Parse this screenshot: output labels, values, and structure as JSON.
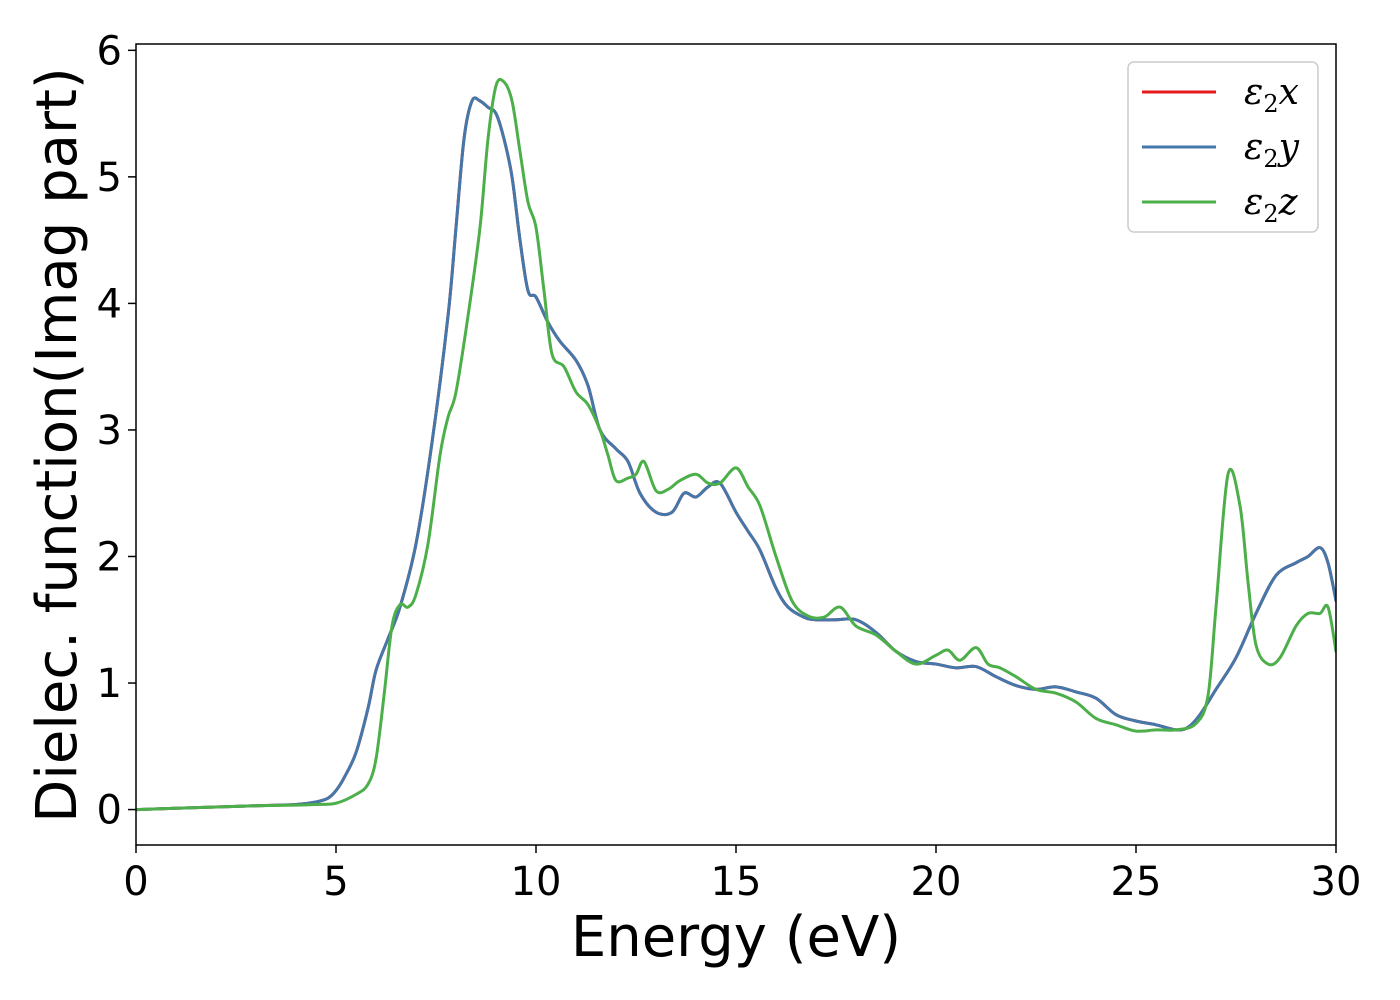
{
  "chart_data": {
    "type": "line",
    "title": "",
    "xlabel": "Energy (eV)",
    "ylabel": "Dielec. function(Imag part)",
    "xlim": [
      0,
      30
    ],
    "ylim": [
      -0.28,
      6.05
    ],
    "xticks": [
      0,
      5,
      10,
      15,
      20,
      25,
      30
    ],
    "yticks": [
      0,
      1,
      2,
      3,
      4,
      5,
      6
    ],
    "grid": false,
    "legend_position": "top-right",
    "series": [
      {
        "name": "ε2x",
        "legend": {
          "base": "ε",
          "sub": "2",
          "var": "x"
        },
        "color": "#e41a1c",
        "x": [
          0,
          1,
          2,
          3,
          4,
          4.5,
          4.8,
          5.0,
          5.2,
          5.5,
          5.8,
          6.0,
          6.3,
          6.6,
          7.0,
          7.4,
          7.8,
          8.0,
          8.2,
          8.4,
          8.6,
          8.8,
          9.0,
          9.2,
          9.4,
          9.6,
          9.8,
          10.0,
          10.3,
          10.6,
          11.0,
          11.3,
          11.6,
          12.0,
          12.3,
          12.6,
          13.0,
          13.4,
          13.7,
          14.0,
          14.3,
          14.6,
          15.0,
          15.3,
          15.6,
          16.0,
          16.3,
          16.7,
          17.0,
          17.5,
          18.0,
          18.5,
          19.0,
          19.5,
          20.0,
          20.5,
          21.0,
          21.5,
          22.0,
          22.5,
          23.0,
          23.5,
          24.0,
          24.5,
          25.0,
          25.5,
          26.0,
          26.3,
          26.6,
          27.0,
          27.5,
          28.0,
          28.5,
          29.0,
          29.3,
          29.6,
          29.8,
          30.0
        ],
        "y": [
          0.0,
          0.01,
          0.02,
          0.03,
          0.04,
          0.06,
          0.09,
          0.15,
          0.25,
          0.45,
          0.8,
          1.1,
          1.35,
          1.6,
          2.1,
          2.9,
          3.9,
          4.6,
          5.3,
          5.6,
          5.6,
          5.55,
          5.5,
          5.3,
          5.0,
          4.5,
          4.1,
          4.05,
          3.85,
          3.7,
          3.55,
          3.35,
          3.0,
          2.85,
          2.75,
          2.5,
          2.35,
          2.35,
          2.5,
          2.47,
          2.55,
          2.58,
          2.35,
          2.2,
          2.05,
          1.75,
          1.6,
          1.52,
          1.5,
          1.5,
          1.5,
          1.4,
          1.25,
          1.17,
          1.15,
          1.12,
          1.13,
          1.05,
          0.98,
          0.95,
          0.97,
          0.93,
          0.88,
          0.75,
          0.7,
          0.67,
          0.63,
          0.65,
          0.75,
          0.95,
          1.2,
          1.55,
          1.85,
          1.95,
          2.0,
          2.07,
          1.95,
          1.65
        ]
      },
      {
        "name": "ε2y",
        "legend": {
          "base": "ε",
          "sub": "2",
          "var": "y"
        },
        "color": "#4477aa",
        "x": [
          0,
          1,
          2,
          3,
          4,
          4.5,
          4.8,
          5.0,
          5.2,
          5.5,
          5.8,
          6.0,
          6.3,
          6.6,
          7.0,
          7.4,
          7.8,
          8.0,
          8.2,
          8.4,
          8.6,
          8.8,
          9.0,
          9.2,
          9.4,
          9.6,
          9.8,
          10.0,
          10.3,
          10.6,
          11.0,
          11.3,
          11.6,
          12.0,
          12.3,
          12.6,
          13.0,
          13.4,
          13.7,
          14.0,
          14.3,
          14.6,
          15.0,
          15.3,
          15.6,
          16.0,
          16.3,
          16.7,
          17.0,
          17.5,
          18.0,
          18.5,
          19.0,
          19.5,
          20.0,
          20.5,
          21.0,
          21.5,
          22.0,
          22.5,
          23.0,
          23.5,
          24.0,
          24.5,
          25.0,
          25.5,
          26.0,
          26.3,
          26.6,
          27.0,
          27.5,
          28.0,
          28.5,
          29.0,
          29.3,
          29.6,
          29.8,
          30.0
        ],
        "y": [
          0.0,
          0.01,
          0.02,
          0.03,
          0.04,
          0.06,
          0.09,
          0.15,
          0.25,
          0.45,
          0.8,
          1.1,
          1.35,
          1.6,
          2.1,
          2.9,
          3.9,
          4.6,
          5.3,
          5.6,
          5.6,
          5.55,
          5.5,
          5.3,
          5.0,
          4.5,
          4.1,
          4.05,
          3.85,
          3.7,
          3.55,
          3.35,
          3.0,
          2.85,
          2.75,
          2.5,
          2.35,
          2.35,
          2.5,
          2.47,
          2.55,
          2.58,
          2.35,
          2.2,
          2.05,
          1.75,
          1.6,
          1.52,
          1.5,
          1.5,
          1.5,
          1.4,
          1.25,
          1.17,
          1.15,
          1.12,
          1.13,
          1.05,
          0.98,
          0.95,
          0.97,
          0.93,
          0.88,
          0.75,
          0.7,
          0.67,
          0.63,
          0.65,
          0.75,
          0.95,
          1.2,
          1.55,
          1.85,
          1.95,
          2.0,
          2.07,
          1.95,
          1.65
        ]
      },
      {
        "name": "ε2z",
        "legend": {
          "base": "ε",
          "sub": "2",
          "var": "z"
        },
        "color": "#4daf4a",
        "x": [
          0,
          1,
          2,
          3,
          4,
          4.5,
          5.0,
          5.5,
          5.8,
          6.0,
          6.2,
          6.4,
          6.6,
          6.8,
          7.0,
          7.3,
          7.6,
          7.8,
          8.0,
          8.3,
          8.6,
          8.8,
          9.0,
          9.2,
          9.4,
          9.6,
          9.8,
          10.0,
          10.2,
          10.4,
          10.7,
          11.0,
          11.3,
          11.6,
          11.8,
          12.0,
          12.3,
          12.5,
          12.7,
          13.0,
          13.3,
          13.6,
          14.0,
          14.3,
          14.6,
          15.0,
          15.3,
          15.6,
          16.0,
          16.4,
          16.8,
          17.2,
          17.6,
          18.0,
          18.5,
          19.0,
          19.5,
          20.0,
          20.3,
          20.6,
          21.0,
          21.3,
          21.6,
          22.0,
          22.5,
          23.0,
          23.5,
          24.0,
          24.5,
          25.0,
          25.5,
          26.0,
          26.5,
          26.8,
          27.0,
          27.3,
          27.6,
          27.8,
          28.0,
          28.3,
          28.6,
          29.0,
          29.3,
          29.6,
          29.8,
          30.0
        ],
        "y": [
          0.0,
          0.01,
          0.02,
          0.03,
          0.035,
          0.04,
          0.05,
          0.12,
          0.2,
          0.4,
          0.9,
          1.45,
          1.62,
          1.6,
          1.7,
          2.1,
          2.8,
          3.1,
          3.3,
          3.9,
          4.6,
          5.3,
          5.72,
          5.75,
          5.6,
          5.2,
          4.8,
          4.6,
          4.1,
          3.6,
          3.5,
          3.3,
          3.2,
          3.0,
          2.8,
          2.6,
          2.62,
          2.65,
          2.75,
          2.52,
          2.53,
          2.6,
          2.65,
          2.58,
          2.58,
          2.7,
          2.55,
          2.4,
          2.0,
          1.65,
          1.53,
          1.52,
          1.6,
          1.45,
          1.38,
          1.25,
          1.15,
          1.22,
          1.26,
          1.18,
          1.28,
          1.15,
          1.12,
          1.05,
          0.95,
          0.92,
          0.85,
          0.72,
          0.67,
          0.62,
          0.63,
          0.63,
          0.68,
          0.9,
          1.6,
          2.65,
          2.4,
          1.8,
          1.3,
          1.15,
          1.2,
          1.45,
          1.55,
          1.55,
          1.6,
          1.25
        ]
      }
    ]
  }
}
